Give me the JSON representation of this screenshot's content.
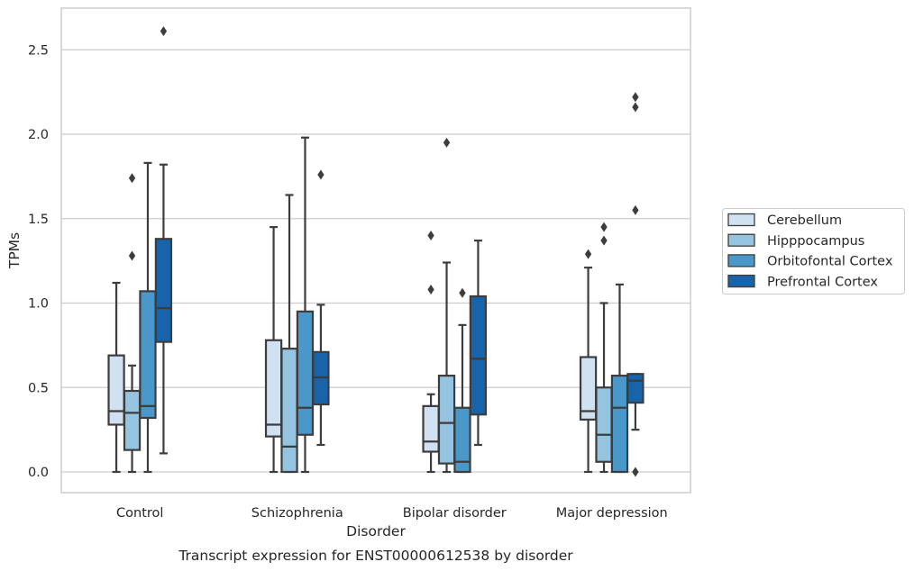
{
  "chart_data": {
    "type": "box",
    "title": "Transcript expression for ENST00000612538 by disorder",
    "xlabel": "Disorder",
    "ylabel": "TPMs",
    "ylim": [
      -0.13,
      2.75
    ],
    "yticks": [
      "0.0",
      "0.5",
      "1.0",
      "1.5",
      "2.0",
      "2.5"
    ],
    "grid": true,
    "legend_position": "right",
    "categories": [
      "Control",
      "Schizophrenia",
      "Bipolar disorder",
      "Major depression"
    ],
    "series": [
      {
        "name": "Cerebellum",
        "color": "#d0e1f2",
        "boxes": [
          {
            "whislo": 0.0,
            "q1": 0.28,
            "med": 0.36,
            "q3": 0.69,
            "whishi": 1.12,
            "fliers": []
          },
          {
            "whislo": 0.0,
            "q1": 0.21,
            "med": 0.28,
            "q3": 0.78,
            "whishi": 1.45,
            "fliers": []
          },
          {
            "whislo": 0.0,
            "q1": 0.12,
            "med": 0.18,
            "q3": 0.39,
            "whishi": 0.46,
            "fliers": [
              1.08,
              1.4
            ]
          },
          {
            "whislo": 0.0,
            "q1": 0.31,
            "med": 0.36,
            "q3": 0.68,
            "whishi": 1.21,
            "fliers": [
              1.29
            ]
          }
        ]
      },
      {
        "name": "Hipppocampus",
        "color": "#94c4df",
        "boxes": [
          {
            "whislo": 0.0,
            "q1": 0.13,
            "med": 0.35,
            "q3": 0.48,
            "whishi": 0.63,
            "fliers": [
              1.28,
              1.74
            ]
          },
          {
            "whislo": 0.0,
            "q1": 0.0,
            "med": 0.15,
            "q3": 0.73,
            "whishi": 1.64,
            "fliers": []
          },
          {
            "whislo": 0.0,
            "q1": 0.05,
            "med": 0.29,
            "q3": 0.57,
            "whishi": 1.24,
            "fliers": [
              1.95
            ]
          },
          {
            "whislo": 0.0,
            "q1": 0.06,
            "med": 0.22,
            "q3": 0.5,
            "whishi": 1.0,
            "fliers": [
              1.37,
              1.45
            ]
          }
        ]
      },
      {
        "name": "Orbitofontal Cortex",
        "color": "#4a98c9",
        "boxes": [
          {
            "whislo": 0.0,
            "q1": 0.32,
            "med": 0.39,
            "q3": 1.07,
            "whishi": 1.83,
            "fliers": []
          },
          {
            "whislo": 0.0,
            "q1": 0.22,
            "med": 0.38,
            "q3": 0.95,
            "whishi": 1.98,
            "fliers": []
          },
          {
            "whislo": 0.0,
            "q1": 0.0,
            "med": 0.06,
            "q3": 0.38,
            "whishi": 0.87,
            "fliers": [
              1.06
            ]
          },
          {
            "whislo": 0.0,
            "q1": 0.0,
            "med": 0.38,
            "q3": 0.57,
            "whishi": 1.11,
            "fliers": []
          }
        ]
      },
      {
        "name": "Prefrontal Cortex",
        "color": "#1764ab",
        "boxes": [
          {
            "whislo": 0.11,
            "q1": 0.77,
            "med": 0.97,
            "q3": 1.38,
            "whishi": 1.82,
            "fliers": [
              2.61
            ]
          },
          {
            "whislo": 0.16,
            "q1": 0.4,
            "med": 0.56,
            "q3": 0.71,
            "whishi": 0.99,
            "fliers": [
              1.76
            ]
          },
          {
            "whislo": 0.16,
            "q1": 0.34,
            "med": 0.67,
            "q3": 1.04,
            "whishi": 1.37,
            "fliers": []
          },
          {
            "whislo": 0.25,
            "q1": 0.41,
            "med": 0.54,
            "q3": 0.58,
            "whishi": 0.58,
            "fliers": [
              0.0,
              1.55,
              2.16,
              2.22
            ]
          }
        ]
      }
    ]
  },
  "colors": {
    "grid": "#cccccc",
    "frame": "#cccccc",
    "lines": "#3d3d3d",
    "text": "#262626"
  }
}
